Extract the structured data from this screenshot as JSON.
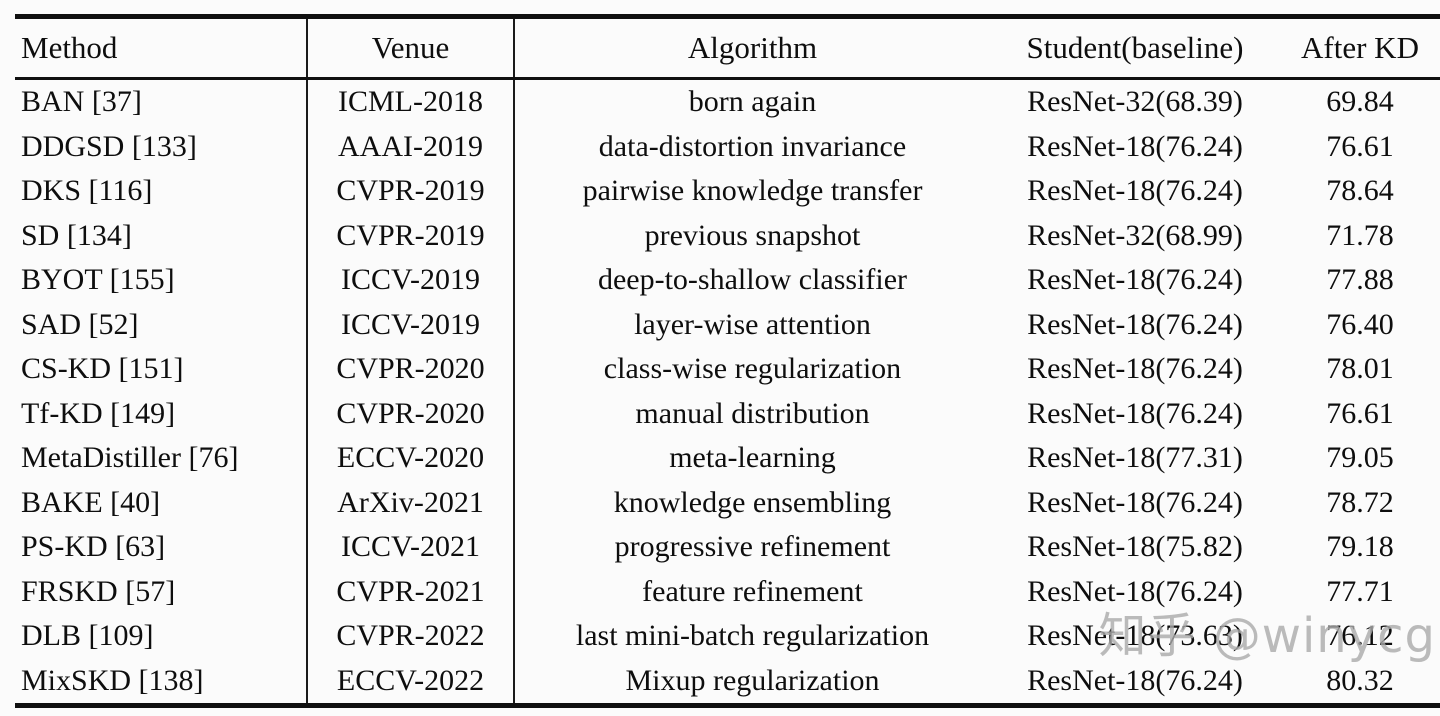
{
  "table": {
    "columns": [
      "Method",
      "Venue",
      "Algorithm",
      "Student(baseline)",
      "After KD"
    ],
    "rows": [
      {
        "method": "BAN [37]",
        "venue": "ICML-2018",
        "algorithm": "born again",
        "student": "ResNet-32(68.39)",
        "after_kd": "69.84"
      },
      {
        "method": "DDGSD [133]",
        "venue": "AAAI-2019",
        "algorithm": "data-distortion invariance",
        "student": "ResNet-18(76.24)",
        "after_kd": "76.61"
      },
      {
        "method": "DKS [116]",
        "venue": "CVPR-2019",
        "algorithm": "pairwise knowledge transfer",
        "student": "ResNet-18(76.24)",
        "after_kd": "78.64"
      },
      {
        "method": "SD [134]",
        "venue": "CVPR-2019",
        "algorithm": "previous snapshot",
        "student": "ResNet-32(68.99)",
        "after_kd": "71.78"
      },
      {
        "method": "BYOT [155]",
        "venue": "ICCV-2019",
        "algorithm": "deep-to-shallow classifier",
        "student": "ResNet-18(76.24)",
        "after_kd": "77.88"
      },
      {
        "method": "SAD [52]",
        "venue": "ICCV-2019",
        "algorithm": "layer-wise attention",
        "student": "ResNet-18(76.24)",
        "after_kd": "76.40"
      },
      {
        "method": "CS-KD [151]",
        "venue": "CVPR-2020",
        "algorithm": "class-wise regularization",
        "student": "ResNet-18(76.24)",
        "after_kd": "78.01"
      },
      {
        "method": "Tf-KD [149]",
        "venue": "CVPR-2020",
        "algorithm": "manual distribution",
        "student": "ResNet-18(76.24)",
        "after_kd": "76.61"
      },
      {
        "method": "MetaDistiller [76]",
        "venue": "ECCV-2020",
        "algorithm": "meta-learning",
        "student": "ResNet-18(77.31)",
        "after_kd": "79.05"
      },
      {
        "method": "BAKE [40]",
        "venue": "ArXiv-2021",
        "algorithm": "knowledge ensembling",
        "student": "ResNet-18(76.24)",
        "after_kd": "78.72"
      },
      {
        "method": "PS-KD [63]",
        "venue": "ICCV-2021",
        "algorithm": "progressive refinement",
        "student": "ResNet-18(75.82)",
        "after_kd": "79.18"
      },
      {
        "method": "FRSKD [57]",
        "venue": "CVPR-2021",
        "algorithm": "feature refinement",
        "student": "ResNet-18(76.24)",
        "after_kd": "77.71"
      },
      {
        "method": "DLB [109]",
        "venue": "CVPR-2022",
        "algorithm": "last mini-batch regularization",
        "student": "ResNet-18(73.63)",
        "after_kd": "76.12"
      },
      {
        "method": "MixSKD [138]",
        "venue": "ECCV-2022",
        "algorithm": "Mixup regularization",
        "student": "ResNet-18(76.24)",
        "after_kd": "80.32"
      }
    ]
  },
  "watermark": {
    "text": "知乎 @winycg"
  },
  "colors": {
    "background": "#fbfbfb",
    "rule": "#101010",
    "text": "#0e0e0e",
    "watermark": "#aaaaaa"
  }
}
